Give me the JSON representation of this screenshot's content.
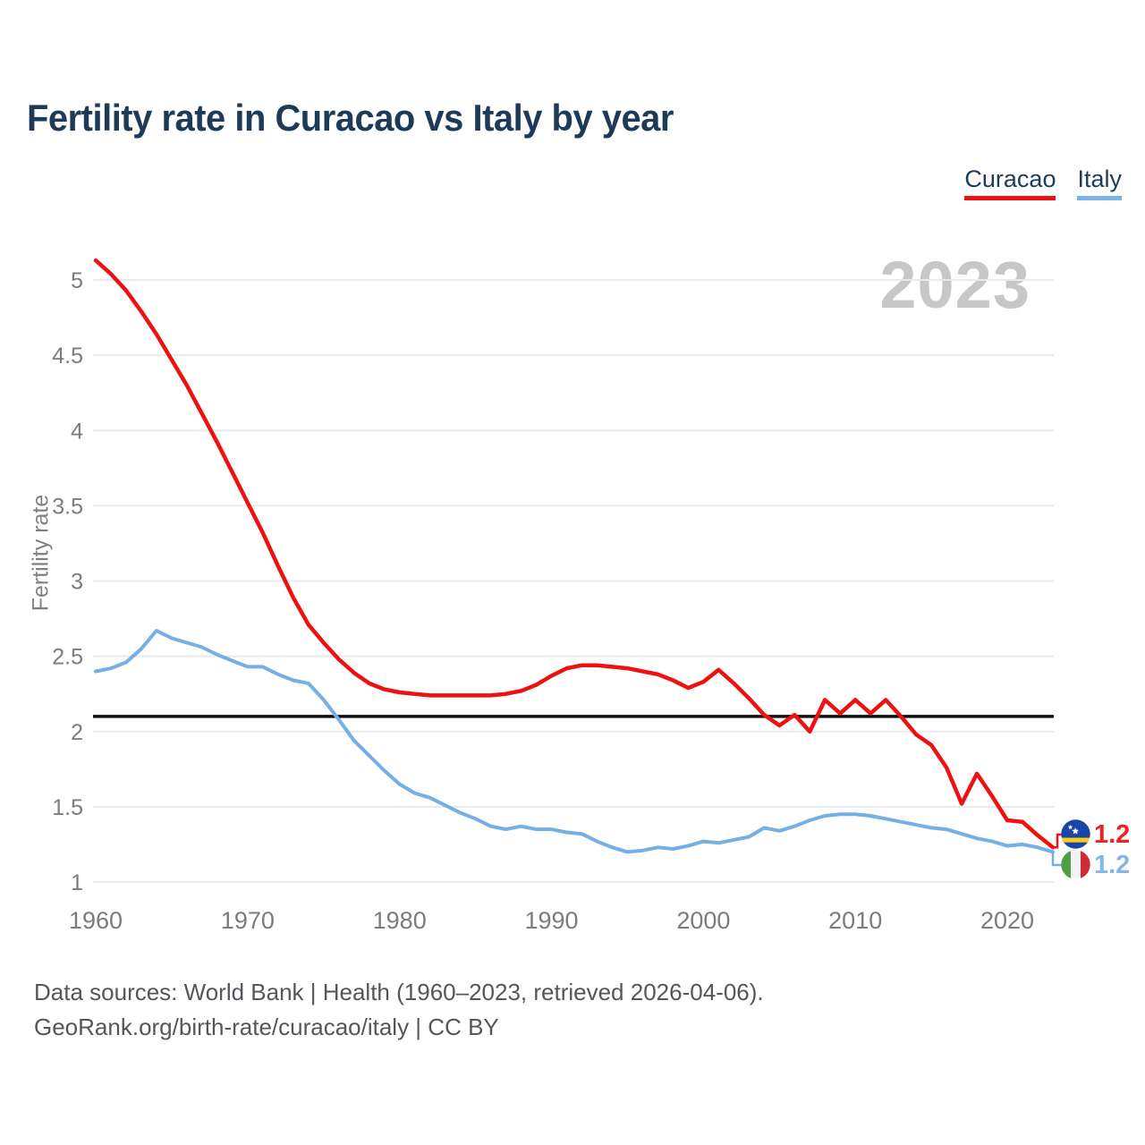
{
  "header": {
    "title": "Fertility rate in Curacao vs Italy by year"
  },
  "legend": {
    "items": [
      {
        "label": "Curacao",
        "color": "#ee1111"
      },
      {
        "label": "Italy",
        "color": "#7ab3e8"
      }
    ]
  },
  "watermark": {
    "text": "2023",
    "color": "#c7c7c9"
  },
  "chart_data": {
    "type": "line",
    "title": "Fertility rate in Curacao vs Italy by year",
    "xlabel": "",
    "ylabel": "Fertility rate",
    "xlim": [
      1960,
      2023
    ],
    "ylim": [
      1,
      5.15
    ],
    "x_ticks": [
      1960,
      1970,
      1980,
      1990,
      2000,
      2010,
      2020
    ],
    "y_ticks": [
      1,
      1.5,
      2,
      2.5,
      3,
      3.5,
      4,
      4.5,
      5
    ],
    "grid": "horizontal",
    "legend_position": "top-right",
    "reference_line": {
      "value": 2.1,
      "color": "#111111"
    },
    "x": [
      1960,
      1961,
      1962,
      1963,
      1964,
      1965,
      1966,
      1967,
      1968,
      1969,
      1970,
      1971,
      1972,
      1973,
      1974,
      1975,
      1976,
      1977,
      1978,
      1979,
      1980,
      1981,
      1982,
      1983,
      1984,
      1985,
      1986,
      1987,
      1988,
      1989,
      1990,
      1991,
      1992,
      1993,
      1994,
      1995,
      1996,
      1997,
      1998,
      1999,
      2000,
      2001,
      2002,
      2003,
      2004,
      2005,
      2006,
      2007,
      2008,
      2009,
      2010,
      2011,
      2012,
      2013,
      2014,
      2015,
      2016,
      2017,
      2018,
      2019,
      2020,
      2021,
      2022,
      2023
    ],
    "series": [
      {
        "name": "Curacao",
        "color": "#ee1111",
        "end_label": "1.2",
        "values": [
          5.13,
          5.04,
          4.93,
          4.79,
          4.64,
          4.47,
          4.3,
          4.11,
          3.92,
          3.72,
          3.52,
          3.32,
          3.1,
          2.89,
          2.71,
          2.59,
          2.48,
          2.39,
          2.32,
          2.28,
          2.26,
          2.25,
          2.24,
          2.24,
          2.24,
          2.24,
          2.24,
          2.25,
          2.27,
          2.31,
          2.37,
          2.42,
          2.44,
          2.44,
          2.43,
          2.42,
          2.4,
          2.38,
          2.34,
          2.29,
          2.33,
          2.41,
          2.32,
          2.22,
          2.11,
          2.04,
          2.11,
          2.0,
          2.21,
          2.12,
          2.21,
          2.12,
          2.21,
          2.1,
          1.98,
          1.91,
          1.76,
          1.52,
          1.72,
          1.57,
          1.41,
          1.4,
          1.31,
          1.23
        ]
      },
      {
        "name": "Italy",
        "color": "#74afe5",
        "end_label": "1.2",
        "values": [
          2.4,
          2.42,
          2.46,
          2.55,
          2.67,
          2.62,
          2.59,
          2.56,
          2.51,
          2.47,
          2.43,
          2.43,
          2.38,
          2.34,
          2.32,
          2.21,
          2.08,
          1.94,
          1.84,
          1.74,
          1.65,
          1.59,
          1.56,
          1.51,
          1.46,
          1.42,
          1.37,
          1.35,
          1.37,
          1.35,
          1.35,
          1.33,
          1.32,
          1.27,
          1.23,
          1.2,
          1.21,
          1.23,
          1.22,
          1.24,
          1.27,
          1.26,
          1.28,
          1.3,
          1.36,
          1.34,
          1.37,
          1.41,
          1.44,
          1.45,
          1.45,
          1.44,
          1.42,
          1.4,
          1.38,
          1.36,
          1.35,
          1.32,
          1.29,
          1.27,
          1.24,
          1.25,
          1.23,
          1.2
        ]
      }
    ]
  },
  "footer": {
    "line1": "Data sources: World Bank | Health (1960–2023, retrieved 2026-04-06).",
    "line2": "GeoRank.org/birth-rate/curacao/italy | CC BY"
  }
}
